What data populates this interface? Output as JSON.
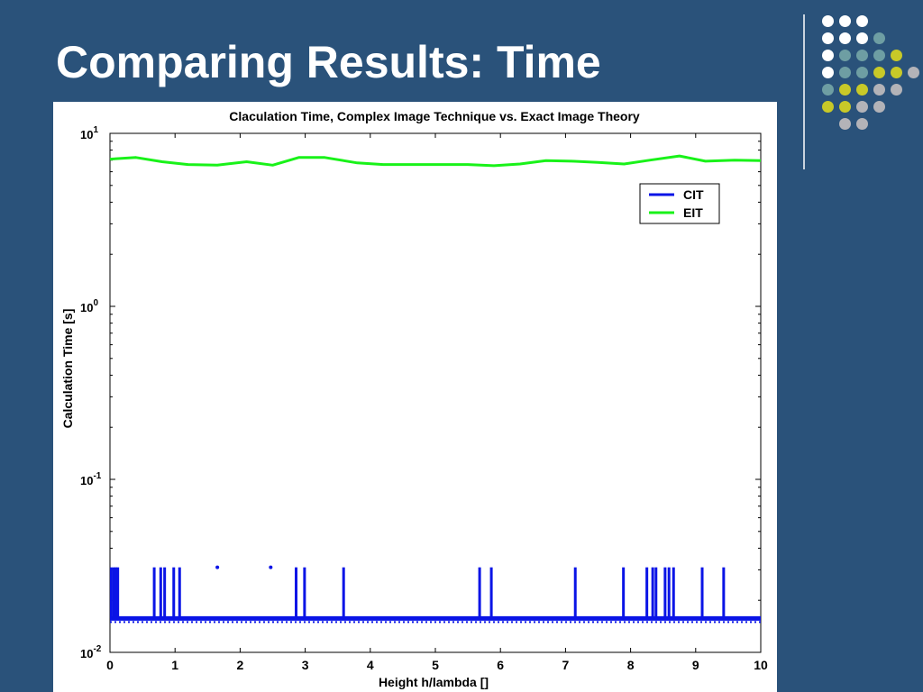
{
  "slide": {
    "title": "Comparing Results: Time"
  },
  "decoration": {
    "dot_colors": {
      "white": "#ffffff",
      "teal": "#6e9ea3",
      "yellow": "#c8c928",
      "gray": "#b3b3b8"
    },
    "dot_grid": [
      [
        "white",
        "white",
        "white"
      ],
      [
        "white",
        "white",
        "white",
        "teal"
      ],
      [
        "white",
        "teal",
        "teal",
        "teal",
        "yellow"
      ],
      [
        "white",
        "teal",
        "teal",
        "yellow",
        "yellow",
        "gray"
      ],
      [
        "teal",
        "yellow",
        "yellow",
        "gray",
        "gray"
      ],
      [
        "yellow",
        "yellow",
        "gray",
        "gray"
      ],
      [
        "gray",
        "gray"
      ]
    ]
  },
  "chart_data": {
    "type": "line",
    "title": "Claculation Time, Complex Image Technique vs. Exact Image Theory",
    "xlabel": "Height h/lambda []",
    "ylabel": "Calculation Time [s]",
    "xlim": [
      0,
      10
    ],
    "ylim": [
      0.01,
      10
    ],
    "y_scale": "log",
    "x_ticks": [
      "0",
      "1",
      "2",
      "3",
      "4",
      "5",
      "6",
      "7",
      "8",
      "9",
      "10"
    ],
    "y_ticks": [
      {
        "base": "10",
        "exp": "-2"
      },
      {
        "base": "10",
        "exp": "-1"
      },
      {
        "base": "10",
        "exp": "0"
      },
      {
        "base": "10",
        "exp": "1"
      }
    ],
    "grid": false,
    "legend_position": "upper-right",
    "series": [
      {
        "name": "CIT",
        "color": "#0a14e6",
        "baseline": 0.0157,
        "x": [
          0,
          1.5,
          3.5,
          5.0,
          6.5,
          8.0,
          10
        ],
        "y": [
          0.0157,
          0.0157,
          0.0157,
          0.0157,
          0.0157,
          0.0157,
          0.0157
        ],
        "spikes": {
          "value": 0.031,
          "x": [
            0.02,
            0.06,
            0.09,
            0.12,
            0.68,
            0.78,
            0.84,
            0.98,
            1.07,
            2.86,
            2.99,
            3.59,
            5.68,
            5.86,
            7.15,
            7.89,
            8.25,
            8.34,
            8.39,
            8.53,
            8.59,
            8.66,
            9.1,
            9.43
          ]
        },
        "points": {
          "x": [
            1.65,
            2.47
          ],
          "y": [
            0.031,
            0.031
          ]
        }
      },
      {
        "name": "EIT",
        "color": "#19f219",
        "x": [
          0,
          0.4,
          0.8,
          1.2,
          1.65,
          2.1,
          2.5,
          2.9,
          3.3,
          3.8,
          4.2,
          4.6,
          5.0,
          5.5,
          5.9,
          6.3,
          6.7,
          7.1,
          7.5,
          7.9,
          8.3,
          8.75,
          9.15,
          9.6,
          10
        ],
        "y": [
          7.1,
          7.25,
          6.85,
          6.6,
          6.55,
          6.85,
          6.55,
          7.25,
          7.25,
          6.75,
          6.6,
          6.6,
          6.6,
          6.6,
          6.5,
          6.65,
          6.95,
          6.9,
          6.8,
          6.65,
          7.0,
          7.4,
          6.9,
          7.0,
          6.95
        ]
      }
    ]
  }
}
